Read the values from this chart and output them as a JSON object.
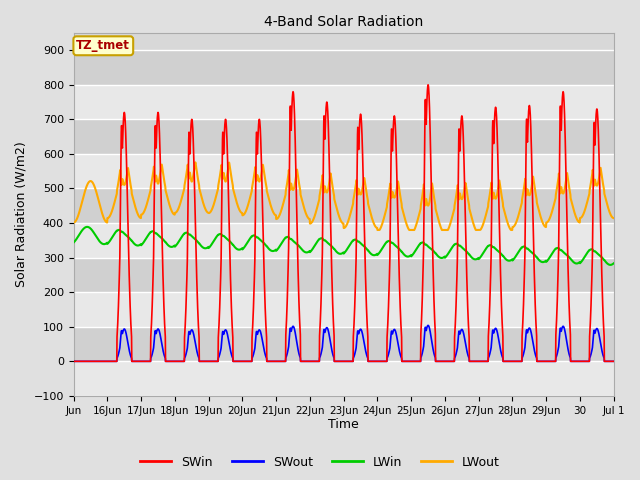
{
  "title": "4-Band Solar Radiation",
  "xlabel": "Time",
  "ylabel": "Solar Radiation (W/m2)",
  "ylim": [
    -100,
    950
  ],
  "yticks": [
    -100,
    0,
    100,
    200,
    300,
    400,
    500,
    600,
    700,
    800,
    900
  ],
  "fig_bg": "#e0e0e0",
  "plot_bg": "#d8d8d8",
  "grid_color": "#ffffff",
  "annotation_text": "TZ_tmet",
  "annotation_bg": "#ffffcc",
  "annotation_border": "#c8a000",
  "annotation_text_color": "#aa0000",
  "series_SWin_color": "#ff0000",
  "series_SWout_color": "#0000ff",
  "series_LWin_color": "#00cc00",
  "series_LWout_color": "#ffaa00",
  "series_SWin_lw": 1.2,
  "series_SWout_lw": 1.2,
  "series_LWin_lw": 1.5,
  "series_LWout_lw": 1.5,
  "n_days": 16,
  "ppd": 144,
  "sw_peaks": [
    0,
    720,
    720,
    700,
    700,
    700,
    780,
    750,
    715,
    710,
    800,
    710,
    735,
    740,
    780,
    730
  ],
  "tick_labels": [
    "Jun",
    "16Jun",
    "17Jun",
    "18Jun",
    "19Jun",
    "20Jun",
    "21Jun",
    "22Jun",
    "23Jun",
    "24Jun",
    "25Jun",
    "26Jun",
    "27Jun",
    "28Jun",
    "29Jun",
    "30",
    "Jul 1"
  ]
}
